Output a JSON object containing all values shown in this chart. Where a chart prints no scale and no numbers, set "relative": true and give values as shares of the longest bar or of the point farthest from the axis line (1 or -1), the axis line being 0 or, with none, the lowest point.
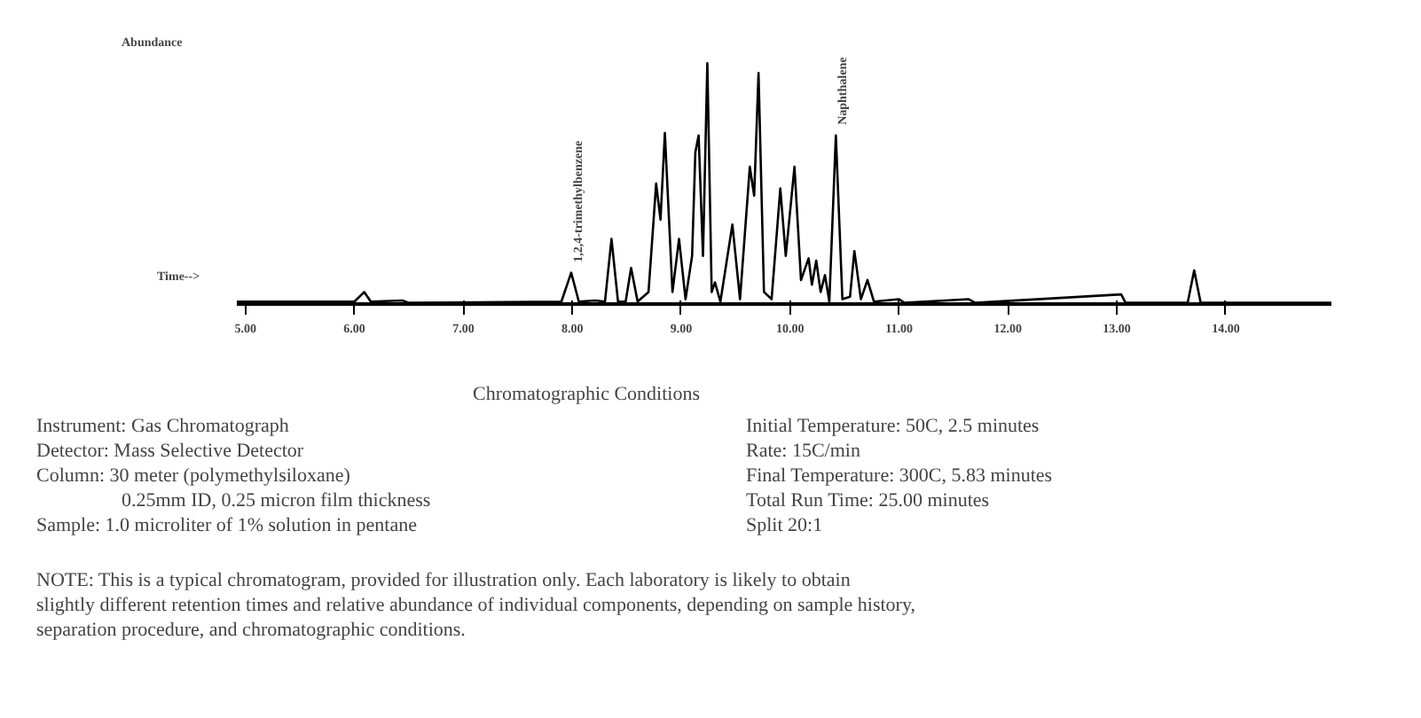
{
  "chart_data": {
    "type": "line",
    "relative": true,
    "ylabel": "Abundance",
    "xlabel": "Time-->",
    "color": "#000000",
    "grid": false,
    "xlim": [
      4.92,
      14.97
    ],
    "xticks": [
      {
        "value": 5,
        "label": "5.00"
      },
      {
        "value": 6,
        "label": "6.00"
      },
      {
        "value": 7,
        "label": "7.00"
      },
      {
        "value": 8,
        "label": "8.00"
      },
      {
        "value": 9,
        "label": "9.00"
      },
      {
        "value": 10,
        "label": "10.00"
      },
      {
        "value": 11,
        "label": "11.00"
      },
      {
        "value": 12,
        "label": "12.00"
      },
      {
        "value": 13,
        "label": "13.00"
      },
      {
        "value": 14,
        "label": "14.00"
      }
    ],
    "x": [
      4.92,
      6.0,
      6.09,
      6.15,
      6.44,
      6.5,
      7.9,
      7.99,
      8.06,
      8.21,
      8.3,
      8.36,
      8.42,
      8.49,
      8.54,
      8.6,
      8.7,
      8.77,
      8.81,
      8.85,
      8.92,
      8.98,
      9.04,
      9.1,
      9.13,
      9.16,
      9.2,
      9.24,
      9.28,
      9.31,
      9.36,
      9.47,
      9.54,
      9.63,
      9.67,
      9.71,
      9.76,
      9.83,
      9.91,
      9.96,
      10.04,
      10.1,
      10.17,
      10.2,
      10.24,
      10.28,
      10.32,
      10.36,
      10.42,
      10.48,
      10.55,
      10.59,
      10.65,
      10.71,
      10.77,
      11.0,
      11.05,
      11.64,
      11.7,
      13.04,
      13.08,
      13.65,
      13.71,
      13.77,
      14.97
    ],
    "values": [
      0.01,
      0.01,
      0.05,
      0.01,
      0.015,
      0.005,
      0.01,
      0.13,
      0.01,
      0.015,
      0.01,
      0.27,
      0.01,
      0.01,
      0.15,
      0.01,
      0.05,
      0.5,
      0.35,
      0.71,
      0.05,
      0.27,
      0.02,
      0.2,
      0.63,
      0.7,
      0.2,
      1.0,
      0.05,
      0.09,
      0.01,
      0.33,
      0.02,
      0.57,
      0.45,
      0.96,
      0.05,
      0.02,
      0.48,
      0.2,
      0.57,
      0.1,
      0.19,
      0.08,
      0.18,
      0.05,
      0.12,
      0.01,
      0.7,
      0.02,
      0.03,
      0.22,
      0.02,
      0.1,
      0.01,
      0.02,
      0.005,
      0.02,
      0.005,
      0.04,
      0.005,
      0.005,
      0.14,
      0.005,
      0.005
    ],
    "annotations": [
      {
        "text": "1,2,4-trimethylbenzene",
        "x": 7.99,
        "y": 0.13
      },
      {
        "text": "Naphthalene",
        "x": 10.42,
        "y": 0.7
      },
      "Chromatographic Conditions",
      "Instrument: Gas Chromatograph",
      "Detector: Mass Selective Detector",
      "Column:   30 meter (polymethylsiloxane)",
      "0.25mm ID, 0.25 micron film thickness",
      "Sample: 1.0 microliter of 1% solution in pentane",
      "Initial Temperature:  50C, 2.5 minutes",
      "Rate: 15C/min",
      "Final Temperature:  300C, 5.83 minutes",
      "Total Run Time:  25.00 minutes",
      "Split  20:1",
      "NOTE:  This is a typical chromatogram, provided for illustration only.  Each laboratory is likely to obtain slightly different retention times and relative abundance of individual components, depending on sample history, separation procedure, and chromatographic conditions."
    ]
  }
}
